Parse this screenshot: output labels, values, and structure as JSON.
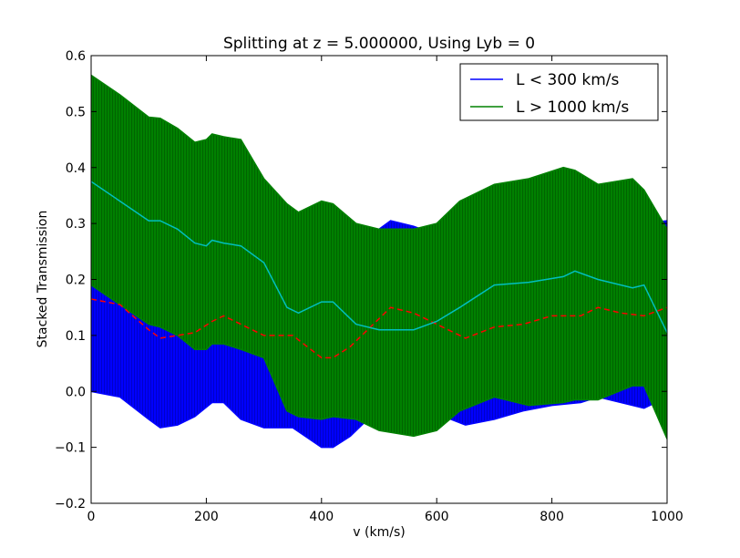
{
  "chart_data": {
    "type": "area",
    "title": "Splitting at z = 5.000000, Using Lyb = 0",
    "xlabel": "v (km/s)",
    "ylabel": "Stacked Transmission",
    "xlim": [
      0,
      1000
    ],
    "ylim": [
      -0.2,
      0.6
    ],
    "xticks": [
      0,
      200,
      400,
      600,
      800,
      1000
    ],
    "yticks": [
      -0.2,
      -0.1,
      0.0,
      0.1,
      0.2,
      0.3,
      0.4,
      0.5,
      0.6
    ],
    "grid": false,
    "legend_position": "top-right",
    "colors": {
      "low": "#0000ff",
      "high": "#008000",
      "mean_low": "#ff0000",
      "mean_high": "#00bfbf"
    },
    "series": [
      {
        "name": "L < 300 km/s",
        "x": [
          0,
          50,
          100,
          120,
          150,
          180,
          210,
          230,
          260,
          300,
          350,
          400,
          420,
          450,
          480,
          520,
          560,
          600,
          650,
          700,
          750,
          800,
          850,
          880,
          920,
          960,
          1000
        ],
        "upper": [
          0.325,
          0.315,
          0.265,
          0.255,
          0.26,
          0.265,
          0.285,
          0.295,
          0.275,
          0.26,
          0.255,
          0.22,
          0.22,
          0.245,
          0.275,
          0.305,
          0.295,
          0.28,
          0.255,
          0.27,
          0.28,
          0.295,
          0.3,
          0.31,
          0.3,
          0.3,
          0.305
        ],
        "lower": [
          0.0,
          -0.01,
          -0.05,
          -0.065,
          -0.06,
          -0.045,
          -0.02,
          -0.02,
          -0.05,
          -0.065,
          -0.065,
          -0.1,
          -0.1,
          -0.08,
          -0.05,
          -0.01,
          -0.02,
          -0.04,
          -0.06,
          -0.05,
          -0.035,
          -0.025,
          -0.02,
          -0.01,
          -0.02,
          -0.03,
          -0.01
        ],
        "mean": [
          0.165,
          0.155,
          0.11,
          0.095,
          0.1,
          0.105,
          0.125,
          0.135,
          0.12,
          0.1,
          0.1,
          0.06,
          0.06,
          0.08,
          0.11,
          0.15,
          0.14,
          0.12,
          0.095,
          0.115,
          0.12,
          0.135,
          0.135,
          0.15,
          0.14,
          0.135,
          0.15
        ]
      },
      {
        "name": "L > 1000 km/s",
        "x": [
          0,
          50,
          100,
          120,
          150,
          180,
          200,
          210,
          230,
          260,
          300,
          340,
          360,
          400,
          420,
          460,
          500,
          560,
          600,
          640,
          700,
          760,
          820,
          840,
          880,
          940,
          960,
          1000
        ],
        "upper": [
          0.565,
          0.53,
          0.49,
          0.488,
          0.47,
          0.445,
          0.45,
          0.46,
          0.455,
          0.45,
          0.38,
          0.335,
          0.32,
          0.34,
          0.335,
          0.3,
          0.29,
          0.29,
          0.3,
          0.34,
          0.37,
          0.38,
          0.4,
          0.395,
          0.37,
          0.38,
          0.36,
          0.29
        ],
        "lower": [
          0.19,
          0.155,
          0.12,
          0.115,
          0.1,
          0.075,
          0.075,
          0.085,
          0.085,
          0.075,
          0.06,
          -0.035,
          -0.045,
          -0.05,
          -0.045,
          -0.05,
          -0.07,
          -0.08,
          -0.07,
          -0.035,
          -0.01,
          -0.025,
          -0.02,
          -0.015,
          -0.015,
          0.01,
          0.01,
          -0.085
        ],
        "mean": [
          0.375,
          0.34,
          0.305,
          0.305,
          0.29,
          0.265,
          0.26,
          0.27,
          0.265,
          0.26,
          0.23,
          0.15,
          0.14,
          0.16,
          0.16,
          0.12,
          0.11,
          0.11,
          0.125,
          0.15,
          0.19,
          0.195,
          0.205,
          0.215,
          0.2,
          0.185,
          0.19,
          0.105
        ]
      }
    ]
  }
}
